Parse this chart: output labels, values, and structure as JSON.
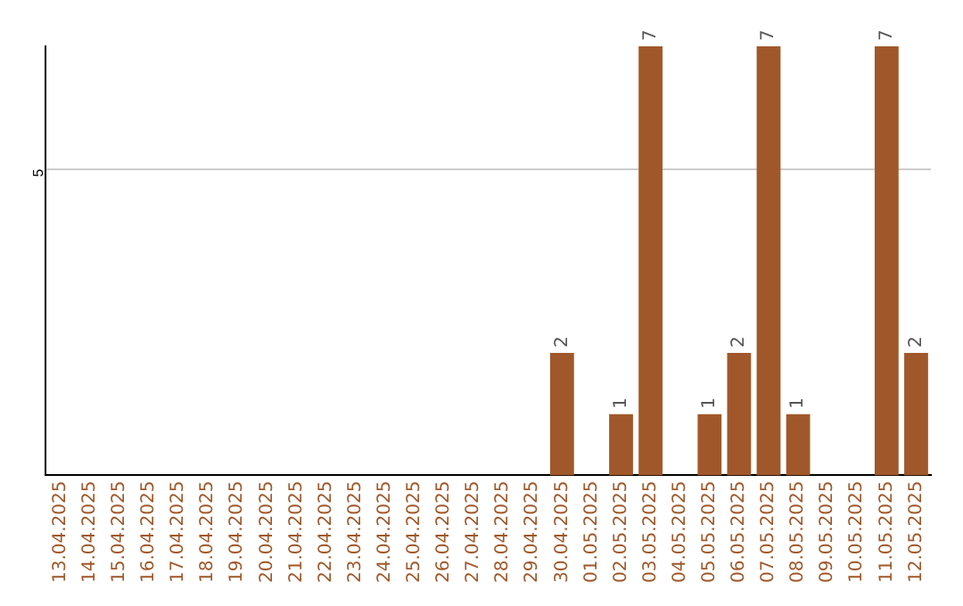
{
  "chart_data": {
    "type": "bar",
    "categories": [
      "13.04.2025",
      "14.04.2025",
      "15.04.2025",
      "16.04.2025",
      "17.04.2025",
      "18.04.2025",
      "19.04.2025",
      "20.04.2025",
      "21.04.2025",
      "22.04.2025",
      "23.04.2025",
      "24.04.2025",
      "25.04.2025",
      "26.04.2025",
      "27.04.2025",
      "28.04.2025",
      "29.04.2025",
      "30.04.2025",
      "01.05.2025",
      "02.05.2025",
      "03.05.2025",
      "04.05.2025",
      "05.05.2025",
      "06.05.2025",
      "07.05.2025",
      "08.05.2025",
      "09.05.2025",
      "10.05.2025",
      "11.05.2025",
      "12.05.2025"
    ],
    "values": [
      null,
      null,
      null,
      null,
      null,
      null,
      null,
      null,
      null,
      null,
      null,
      null,
      null,
      null,
      null,
      null,
      null,
      2,
      null,
      1,
      7,
      null,
      1,
      2,
      7,
      1,
      null,
      null,
      7,
      2
    ],
    "color": "#a0582a",
    "ylim": [
      0,
      7
    ],
    "yticks": [
      5
    ],
    "grid": "y",
    "data_labels": true
  }
}
